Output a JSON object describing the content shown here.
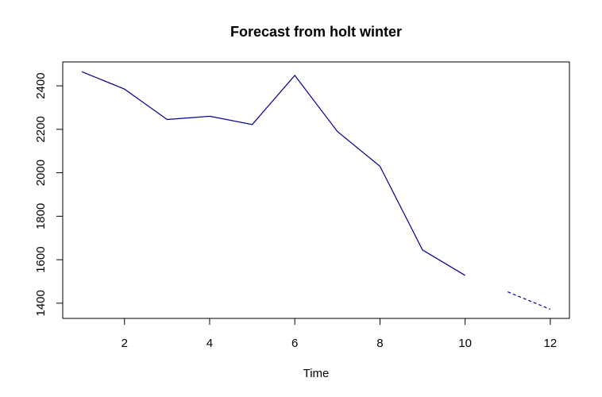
{
  "chart_data": {
    "type": "line",
    "title": "Forecast from holt winter",
    "xlabel": "Time",
    "ylabel": "",
    "xlim": [
      0.55,
      12.45
    ],
    "ylim": [
      1330,
      2510
    ],
    "xticks": [
      "2",
      "4",
      "6",
      "8",
      "10",
      "12"
    ],
    "yticks": [
      "1400",
      "1600",
      "1800",
      "2000",
      "2200",
      "2400"
    ],
    "grid": false,
    "colors": {
      "line": "#00008b",
      "axis": "#000000"
    },
    "series": [
      {
        "kind": "observed",
        "style": "solid",
        "x": [
          1,
          2,
          3,
          4,
          5,
          6,
          7,
          8,
          9,
          10
        ],
        "y": [
          2465,
          2385,
          2245,
          2260,
          2222,
          2448,
          2190,
          2030,
          1645,
          1528
        ]
      },
      {
        "kind": "forecast",
        "style": "dashed",
        "x": [
          11,
          12
        ],
        "y": [
          1452,
          1372
        ]
      }
    ]
  }
}
